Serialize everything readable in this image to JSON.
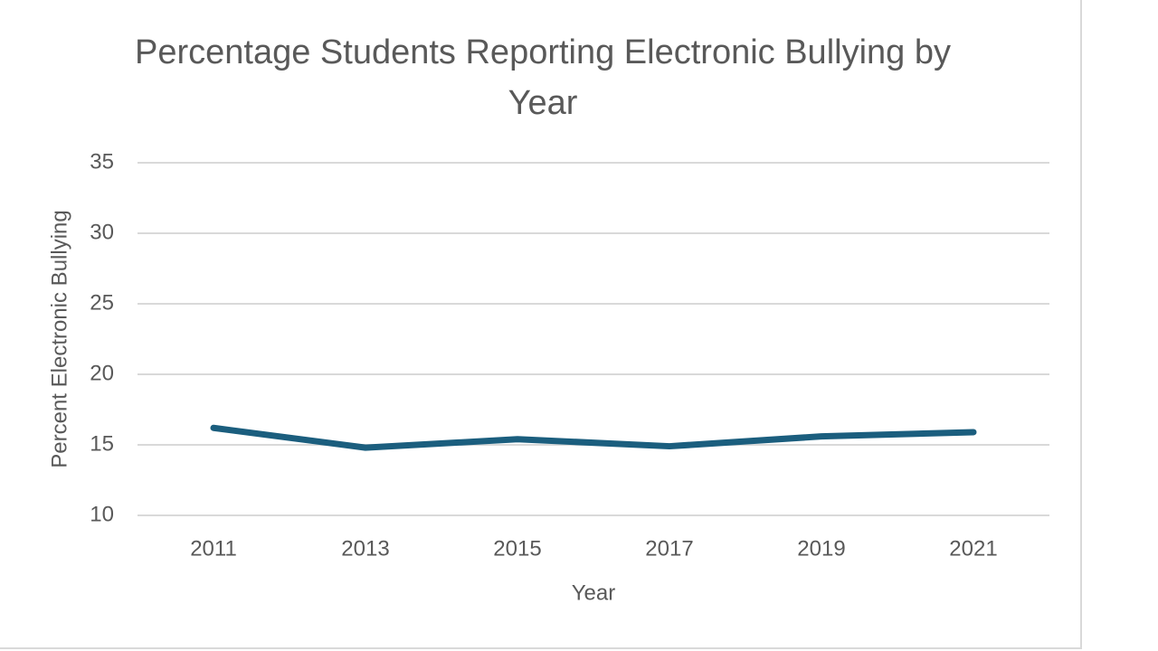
{
  "chart_data": {
    "type": "line",
    "title": "Percentage Students Reporting Electronic Bullying by Year",
    "x_label": "Year",
    "y_label": "Percent Electronic Bullying",
    "categories": [
      "2011",
      "2013",
      "2015",
      "2017",
      "2019",
      "2021"
    ],
    "values": [
      16.2,
      14.8,
      15.4,
      14.9,
      15.6,
      15.9
    ],
    "color": "#1b5e7e",
    "ylim": [
      10,
      35
    ],
    "yticks": [
      10,
      15,
      20,
      25,
      30,
      35
    ],
    "grid": true
  }
}
